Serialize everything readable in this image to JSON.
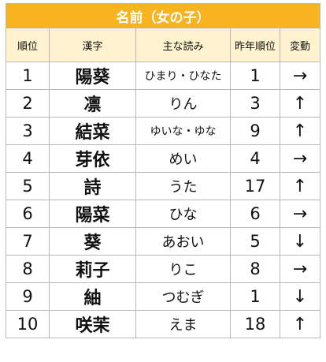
{
  "title": "名前（女の子）",
  "headers": {
    "rank": "順位",
    "kanji": "漢字",
    "reading": "主な読み",
    "prev_rank": "昨年順位",
    "change": "変動"
  },
  "rows": [
    {
      "rank": "1",
      "kanji": "陽葵",
      "reading": "ひまり・ひなた",
      "prev_rank": "1",
      "change": "→"
    },
    {
      "rank": "2",
      "kanji": "凛",
      "reading": "りん",
      "prev_rank": "3",
      "change": "↑"
    },
    {
      "rank": "3",
      "kanji": "結菜",
      "reading": "ゆいな・ゆな",
      "prev_rank": "9",
      "change": "↑"
    },
    {
      "rank": "4",
      "kanji": "芽依",
      "reading": "めい",
      "prev_rank": "4",
      "change": "→"
    },
    {
      "rank": "5",
      "kanji": "詩",
      "reading": "うた",
      "prev_rank": "17",
      "change": "↑"
    },
    {
      "rank": "6",
      "kanji": "陽菜",
      "reading": "ひな",
      "prev_rank": "6",
      "change": "→"
    },
    {
      "rank": "7",
      "kanji": "葵",
      "reading": "あおい",
      "prev_rank": "5",
      "change": "↓"
    },
    {
      "rank": "8",
      "kanji": "莉子",
      "reading": "りこ",
      "prev_rank": "8",
      "change": "→"
    },
    {
      "rank": "9",
      "kanji": "紬",
      "reading": "つむぎ",
      "prev_rank": "1",
      "change": "↓"
    },
    {
      "rank": "10",
      "kanji": "咲茉",
      "reading": "えま",
      "prev_rank": "18",
      "change": "↑"
    }
  ],
  "colors": {
    "title_bg": "#f7b320",
    "header_bg": "#fff3cf",
    "border": "#b7b7b7"
  }
}
